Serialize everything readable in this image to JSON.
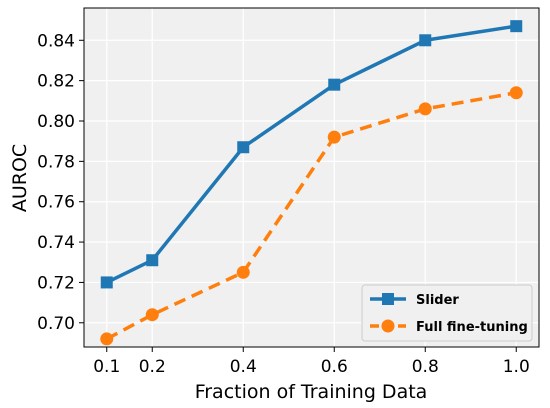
{
  "chart_data": {
    "type": "line",
    "title": "",
    "xlabel": "Fraction of Training Data",
    "ylabel": "AUROC",
    "xlim": [
      0.05,
      1.05
    ],
    "ylim": [
      0.688,
      0.856
    ],
    "xticks": [
      0.1,
      0.2,
      0.4,
      0.6,
      0.8,
      1.0
    ],
    "xtick_labels": [
      "0.1",
      "0.2",
      "0.4",
      "0.6",
      "0.8",
      "1.0"
    ],
    "yticks": [
      0.7,
      0.72,
      0.74,
      0.76,
      0.78,
      0.8,
      0.82,
      0.84
    ],
    "ytick_labels": [
      "0.70",
      "0.72",
      "0.74",
      "0.76",
      "0.78",
      "0.80",
      "0.82",
      "0.84"
    ],
    "grid": true,
    "legend_position": "bottom-right",
    "x": [
      0.1,
      0.2,
      0.4,
      0.6,
      0.8,
      1.0
    ],
    "series": [
      {
        "name": "Slider",
        "values": [
          0.72,
          0.731,
          0.787,
          0.818,
          0.84,
          0.847
        ],
        "color": "#1f77b4",
        "marker": "square",
        "linestyle": "solid"
      },
      {
        "name": "Full fine-tuning",
        "values": [
          0.692,
          0.704,
          0.725,
          0.792,
          0.806,
          0.814
        ],
        "color": "#ff7f0e",
        "marker": "circle",
        "linestyle": "dashed"
      }
    ],
    "background_color": "#f0f0f0",
    "grid_color": "#ffffff"
  }
}
